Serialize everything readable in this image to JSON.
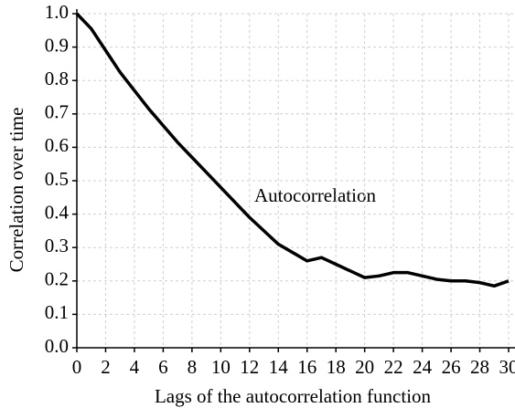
{
  "chart_data": {
    "type": "line",
    "xlabel": "Lags of the autocorrelation function",
    "ylabel": "Correlation over time",
    "annotation": "Autocorrelation",
    "x": [
      0,
      1,
      2,
      3,
      4,
      5,
      6,
      7,
      8,
      9,
      10,
      11,
      12,
      13,
      14,
      15,
      16,
      17,
      18,
      19,
      20,
      21,
      22,
      23,
      24,
      25,
      26,
      27,
      28,
      29,
      30
    ],
    "values": [
      1.0,
      0.955,
      0.89,
      0.825,
      0.77,
      0.715,
      0.665,
      0.615,
      0.57,
      0.525,
      0.48,
      0.435,
      0.39,
      0.35,
      0.31,
      0.285,
      0.26,
      0.27,
      0.25,
      0.23,
      0.21,
      0.215,
      0.225,
      0.225,
      0.215,
      0.205,
      0.2,
      0.2,
      0.195,
      0.185,
      0.2
    ],
    "color": "#000000",
    "xlim": [
      0,
      30
    ],
    "ylim": [
      0,
      1
    ],
    "xticks": [
      0,
      2,
      4,
      6,
      8,
      10,
      12,
      14,
      16,
      18,
      20,
      22,
      24,
      26,
      28,
      30
    ],
    "yticks": [
      {
        "value": 0,
        "label": "0.0"
      },
      0.1,
      0.2,
      0.3,
      0.4,
      0.5,
      0.6,
      0.7,
      0.8,
      0.9,
      {
        "value": 1,
        "label": "1.0"
      }
    ],
    "grid": true
  }
}
